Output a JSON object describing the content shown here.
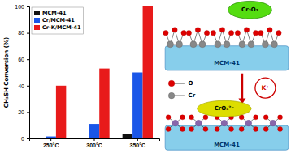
{
  "chart_data": {
    "type": "bar",
    "y_label": "CH₃SH Conversion (%)",
    "categories": [
      "250°C",
      "300°C",
      "350°C"
    ],
    "series": [
      {
        "name": "MCM-41",
        "color": "#111111",
        "values": [
          0.5,
          0.5,
          3.5
        ]
      },
      {
        "name": "Cr/MCM-41",
        "color": "#1a56e8",
        "values": [
          1.5,
          11,
          50
        ]
      },
      {
        "name": "Cr-K/MCM-41",
        "color": "#e81a1a",
        "values": [
          40,
          53,
          100
        ]
      }
    ],
    "ylim": [
      0,
      100
    ],
    "yticks": [
      0,
      20,
      40,
      60,
      80,
      100
    ],
    "grid": false,
    "legend": "upper left",
    "annotations": [
      "MCM-41",
      "Cr₂O₃",
      "O",
      "Cr",
      "K⁺",
      "CrO₄²⁻",
      "MCM-41"
    ]
  }
}
